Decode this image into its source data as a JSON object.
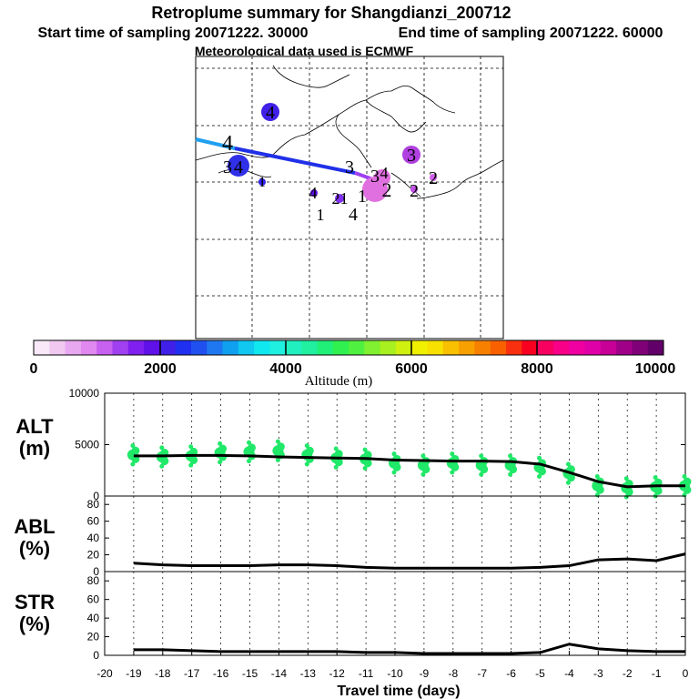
{
  "header": {
    "title": "Retroplume summary for Shangdianzi_200712",
    "start_time": "Start time of sampling 20071222. 30000",
    "end_time": "End time of sampling 20071222. 60000",
    "met_data": "Meteorological data used is ECMWF"
  },
  "colorbar": {
    "label": "Altitude (m)",
    "ticks": [
      "0",
      "2000",
      "4000",
      "6000",
      "8000",
      "10000"
    ],
    "colors": [
      "#f8e8f8",
      "#f0c8f0",
      "#e8a8f0",
      "#e088f0",
      "#c860f0",
      "#a040f0",
      "#8020f0",
      "#6010e8",
      "#4020e8",
      "#2030f0",
      "#2050f0",
      "#2078f0",
      "#10a0f0",
      "#10c8f0",
      "#10e8f0",
      "#20f0e0",
      "#20f0c0",
      "#20f0a0",
      "#20f078",
      "#30f050",
      "#50f040",
      "#80f030",
      "#a8f020",
      "#d0f010",
      "#f0f000",
      "#f8e000",
      "#f8c000",
      "#f8a000",
      "#f88000",
      "#f86000",
      "#f83010",
      "#f80020",
      "#f80060",
      "#f80088",
      "#f000a0",
      "#e000a8",
      "#c80098",
      "#a00088",
      "#800078",
      "#600068"
    ]
  },
  "map": {
    "labels": [
      {
        "text": "4",
        "lon": "4"
      },
      {
        "text": "4"
      },
      {
        "text": "3"
      },
      {
        "text": "4"
      },
      {
        "text": "3"
      },
      {
        "text": "2"
      },
      {
        "text": "2"
      },
      {
        "text": "1"
      },
      {
        "text": "4"
      },
      {
        "text": "2"
      },
      {
        "text": "1"
      },
      {
        "text": "1"
      },
      {
        "text": "4"
      },
      {
        "text": "1"
      },
      {
        "text": "3"
      },
      {
        "text": "2"
      },
      {
        "text": "3"
      },
      {
        "text": "4"
      }
    ]
  },
  "chart_data": [
    {
      "type": "scatter",
      "panel": "ALT",
      "ylabel_top": "ALT",
      "ylabel_unit": "(m)",
      "ylim": [
        0,
        10000
      ],
      "yticks": [
        "0",
        "5000",
        "10000"
      ],
      "x": [
        -19,
        -18,
        -17,
        -16,
        -15,
        -14,
        -13,
        -12,
        -11,
        -10,
        -9,
        -8,
        -7,
        -6,
        -5,
        -4,
        -3,
        -2,
        -1,
        0
      ],
      "mean_line": [
        3900,
        3900,
        3950,
        3950,
        3900,
        3800,
        3750,
        3700,
        3650,
        3500,
        3450,
        3400,
        3400,
        3350,
        3100,
        2300,
        1400,
        900,
        1000,
        1000
      ],
      "scatter_center": [
        4000,
        3800,
        3900,
        4200,
        4300,
        4400,
        4000,
        3700,
        3600,
        3200,
        3000,
        3200,
        3000,
        3000,
        2800,
        2200,
        1000,
        800,
        900,
        1000
      ]
    },
    {
      "type": "line",
      "panel": "ABL",
      "ylabel_top": "ABL",
      "ylabel_unit": "(%)",
      "ylim": [
        0,
        90
      ],
      "yticks": [
        "0",
        "20",
        "40",
        "60",
        "80"
      ],
      "x": [
        -19,
        -18,
        -17,
        -16,
        -15,
        -14,
        -13,
        -12,
        -11,
        -10,
        -9,
        -8,
        -7,
        -6,
        -5,
        -4,
        -3,
        -2,
        -1,
        0
      ],
      "values": [
        10,
        8,
        7,
        7,
        7,
        8,
        8,
        7,
        5,
        4,
        4,
        4,
        4,
        4,
        5,
        7,
        14,
        15,
        13,
        21
      ]
    },
    {
      "type": "line",
      "panel": "STR",
      "ylabel_top": "STR",
      "ylabel_unit": "(%)",
      "ylim": [
        0,
        90
      ],
      "yticks": [
        "0",
        "20",
        "40",
        "60",
        "80"
      ],
      "x": [
        -19,
        -18,
        -17,
        -16,
        -15,
        -14,
        -13,
        -12,
        -11,
        -10,
        -9,
        -8,
        -7,
        -6,
        -5,
        -4,
        -3,
        -2,
        -1,
        0
      ],
      "values": [
        6,
        6,
        5,
        4,
        4,
        4,
        4,
        4,
        3,
        3,
        2,
        2,
        2,
        2,
        3,
        12,
        7,
        5,
        4,
        4
      ],
      "xlabel": "Travel time (days)",
      "xticks": [
        "-20",
        "-19",
        "-18",
        "-17",
        "-16",
        "-15",
        "-14",
        "-13",
        "-12",
        "-11",
        "-10",
        "-9",
        "-8",
        "-7",
        "-6",
        "-5",
        "-4",
        "-3",
        "-2",
        "-1",
        "0"
      ]
    }
  ]
}
